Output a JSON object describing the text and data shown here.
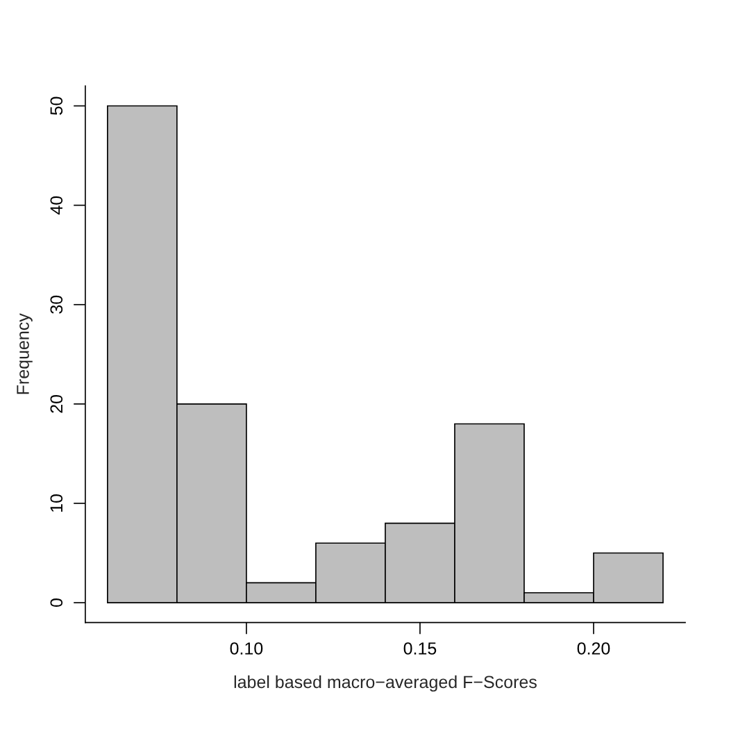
{
  "chart_data": {
    "type": "histogram",
    "xlabel": "label based macro−averaged F−Scores",
    "ylabel": "Frequency",
    "bins": [
      0.06,
      0.08,
      0.1,
      0.12,
      0.14,
      0.16,
      0.18,
      0.2,
      0.22
    ],
    "values": [
      50,
      20,
      2,
      6,
      8,
      18,
      1,
      5
    ],
    "color": "#bebebe",
    "xlim": [
      0.0536,
      0.2264
    ],
    "ylim": [
      -2,
      52
    ],
    "xticks": [
      {
        "value": 0.1,
        "label": "0.10"
      },
      {
        "value": 0.15,
        "label": "0.15"
      },
      {
        "value": 0.2,
        "label": "0.20"
      }
    ],
    "yticks": [
      0,
      10,
      20,
      30,
      40,
      50
    ],
    "grid": false
  }
}
